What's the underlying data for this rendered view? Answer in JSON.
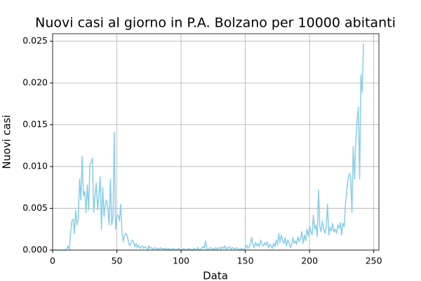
{
  "chart_data": {
    "type": "line",
    "title": "Nuovi casi al giorno in P.A. Bolzano per 10000 abitanti",
    "x_label": "Data",
    "y_label": "Nuovi casi",
    "x": [
      0,
      1,
      2,
      3,
      4,
      5,
      6,
      7,
      8,
      9,
      10,
      11,
      12,
      13,
      14,
      15,
      16,
      17,
      18,
      19,
      20,
      21,
      22,
      23,
      24,
      25,
      26,
      27,
      28,
      29,
      30,
      31,
      32,
      33,
      34,
      35,
      36,
      37,
      38,
      39,
      40,
      41,
      42,
      43,
      44,
      45,
      46,
      47,
      48,
      49,
      50,
      51,
      52,
      53,
      54,
      55,
      56,
      57,
      58,
      59,
      60,
      61,
      62,
      63,
      64,
      65,
      66,
      67,
      68,
      69,
      70,
      71,
      72,
      73,
      74,
      75,
      76,
      77,
      78,
      79,
      80,
      81,
      82,
      83,
      84,
      85,
      86,
      87,
      88,
      89,
      90,
      91,
      92,
      93,
      94,
      95,
      96,
      97,
      98,
      99,
      100,
      101,
      102,
      103,
      104,
      105,
      106,
      107,
      108,
      109,
      110,
      111,
      112,
      113,
      114,
      115,
      116,
      117,
      118,
      119,
      120,
      121,
      122,
      123,
      124,
      125,
      126,
      127,
      128,
      129,
      130,
      131,
      132,
      133,
      134,
      135,
      136,
      137,
      138,
      139,
      140,
      141,
      142,
      143,
      144,
      145,
      146,
      147,
      148,
      149,
      150,
      151,
      152,
      153,
      154,
      155,
      156,
      157,
      158,
      159,
      160,
      161,
      162,
      163,
      164,
      165,
      166,
      167,
      168,
      169,
      170,
      171,
      172,
      173,
      174,
      175,
      176,
      177,
      178,
      179,
      180,
      181,
      182,
      183,
      184,
      185,
      186,
      187,
      188,
      189,
      190,
      191,
      192,
      193,
      194,
      195,
      196,
      197,
      198,
      199,
      200,
      201,
      202,
      203,
      204,
      205,
      206,
      207,
      208,
      209,
      210,
      211,
      212,
      213,
      214,
      215,
      216,
      217,
      218,
      219,
      220,
      221,
      222,
      223,
      224,
      225,
      226,
      227,
      228,
      229,
      230,
      231,
      232,
      233,
      234,
      235,
      236,
      237,
      238,
      239,
      240,
      241,
      242
    ],
    "series": [
      {
        "color": "#87ceeb",
        "values": [
          0,
          0,
          0,
          0,
          0,
          0,
          0,
          0,
          0,
          0,
          0,
          0.0002,
          0.0005,
          0,
          0.002,
          0.0035,
          0.0037,
          0.002,
          0.0048,
          0.003,
          0.0038,
          0.0085,
          0.006,
          0.0112,
          0.0065,
          0.007,
          0.0045,
          0.0078,
          0.0048,
          0.0102,
          0.0105,
          0.011,
          0.0045,
          0.0065,
          0.008,
          0.0048,
          0.0065,
          0.0088,
          0.0025,
          0.0075,
          0.004,
          0.0055,
          0.006,
          0.005,
          0.003,
          0.0085,
          0.003,
          0.004,
          0.0141,
          0.0025,
          0.004,
          0.0042,
          0.0035,
          0.0055,
          0.002,
          0.001,
          0.0018,
          0.002,
          0.0018,
          0.001,
          0.0005,
          0.0008,
          0.0012,
          0.001,
          0.0004,
          0.0008,
          0.0003,
          0.0006,
          0.0002,
          0.0004,
          0.0005,
          0.0002,
          0.0004,
          0.0003,
          0.0001,
          0.0005,
          0.0002,
          0.0003,
          0.0001,
          0.0002,
          0.0003,
          0.0001,
          0.0002,
          0.0001,
          0.0003,
          0.0001,
          0.0002,
          0.0001,
          0.0002,
          0.0001,
          0.0001,
          0.0002,
          0,
          0.0001,
          0.0002,
          0.0001,
          0,
          0.0001,
          0.0002,
          0,
          0.0001,
          0,
          0.0002,
          0.0001,
          0,
          0.0001,
          0.0002,
          0,
          0.0001,
          0,
          0.0002,
          0,
          0.0001,
          0.0003,
          0,
          0.0001,
          0.0002,
          0.0004,
          0.0002,
          0.0011,
          0.0001,
          0,
          0.0002,
          0.0003,
          0.0001,
          0.0002,
          0,
          0.0003,
          0.0001,
          0.0002,
          0.0003,
          0.0001,
          0.0004,
          0.0002,
          0.0005,
          0.0001,
          0.0003,
          0.0002,
          0.0004,
          0.0001,
          0.0003,
          0.0002,
          0.0001,
          0.0003,
          0.0002,
          0.0001,
          0,
          0.0002,
          0.0001,
          0,
          0.0003,
          0.0006,
          0.0002,
          0.0004,
          0.0008,
          0.0015,
          0.0006,
          0.0003,
          0.0009,
          0.0005,
          0.0008,
          0.0004,
          0.0012,
          0.0007,
          0.0005,
          0.0009,
          0.0006,
          0.001,
          0.0003,
          0.0007,
          0.0005,
          0.0002,
          0.0008,
          0.0004,
          0.0012,
          0.0006,
          0.002,
          0.0009,
          0.0018,
          0.0012,
          0.0008,
          0.0015,
          0.0005,
          0.0012,
          0.0009,
          0.0003,
          0.0006,
          0.0015,
          0.0008,
          0.0011,
          0.0007,
          0.0016,
          0.001,
          0.0014,
          0.0022,
          0.0008,
          0.0018,
          0.0011,
          0.0025,
          0.0017,
          0.0028,
          0.0022,
          0.0018,
          0.0042,
          0.0025,
          0.003,
          0.0016,
          0.0072,
          0.0028,
          0.0022,
          0.0035,
          0.0025,
          0.002,
          0.0028,
          0.0055,
          0.0018,
          0.0027,
          0.0023,
          0.0032,
          0.0022,
          0.0025,
          0.002,
          0.003,
          0.0026,
          0.0033,
          0.0018,
          0.0032,
          0.0028,
          0.0055,
          0.0072,
          0.0085,
          0.0092,
          0.0088,
          0.0045,
          0.0124,
          0.0085,
          0.013,
          0.0155,
          0.0171,
          0.0085,
          0.021,
          0.0189,
          0.0247
        ]
      }
    ],
    "xlim": [
      0,
      254
    ],
    "ylim": [
      0,
      0.0259
    ],
    "xticks": [
      0,
      50,
      100,
      150,
      200,
      250
    ],
    "yticks": [
      {
        "value": 0,
        "label": "0.000"
      },
      {
        "value": 0.005,
        "label": "0.005"
      },
      {
        "value": 0.01,
        "label": "0.010"
      },
      {
        "value": 0.015,
        "label": "0.015"
      },
      {
        "value": 0.02,
        "label": "0.020"
      },
      {
        "value": 0.025,
        "label": "0.025"
      }
    ],
    "grid": true
  }
}
